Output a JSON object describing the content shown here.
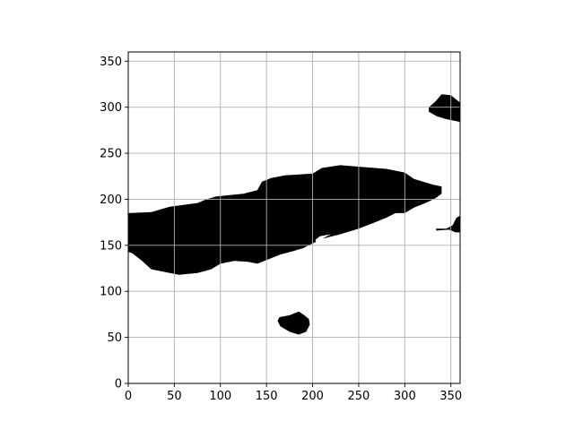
{
  "chart_data": {
    "type": "heatmap",
    "colormap": "binary",
    "xlim": [
      0,
      360
    ],
    "ylim": [
      0,
      360
    ],
    "xticks": [
      0,
      50,
      100,
      150,
      200,
      250,
      300,
      350
    ],
    "yticks": [
      0,
      50,
      100,
      150,
      200,
      250,
      300,
      350
    ],
    "xtick_labels": [
      "0",
      "50",
      "100",
      "150",
      "200",
      "250",
      "300",
      "350"
    ],
    "ytick_labels": [
      "0",
      "50",
      "100",
      "150",
      "200",
      "250",
      "300",
      "350"
    ],
    "grid": true,
    "colors": {
      "filled": "#000000",
      "empty": "#ffffff",
      "grid": "#b0b0b0"
    },
    "regions": [
      {
        "name": "main-region",
        "outline": [
          [
            0,
            185
          ],
          [
            25,
            186
          ],
          [
            45,
            192
          ],
          [
            75,
            196
          ],
          [
            85,
            200
          ],
          [
            95,
            203
          ],
          [
            115,
            205
          ],
          [
            125,
            206
          ],
          [
            140,
            210
          ],
          [
            145,
            219
          ],
          [
            155,
            223
          ],
          [
            170,
            226
          ],
          [
            200,
            228
          ],
          [
            210,
            234
          ],
          [
            230,
            237
          ],
          [
            255,
            235
          ],
          [
            280,
            233
          ],
          [
            300,
            229
          ],
          [
            310,
            222
          ],
          [
            330,
            216
          ],
          [
            340,
            214
          ],
          [
            340,
            206
          ],
          [
            333,
            201
          ],
          [
            325,
            197
          ],
          [
            310,
            191
          ],
          [
            300,
            185
          ],
          [
            290,
            185
          ],
          [
            280,
            180
          ],
          [
            265,
            174
          ],
          [
            250,
            168
          ],
          [
            230,
            162
          ],
          [
            210,
            157
          ],
          [
            200,
            152
          ],
          [
            190,
            147
          ],
          [
            180,
            144
          ],
          [
            165,
            140
          ],
          [
            150,
            134
          ],
          [
            140,
            130
          ],
          [
            130,
            132
          ],
          [
            115,
            133
          ],
          [
            100,
            130
          ],
          [
            90,
            124
          ],
          [
            75,
            120
          ],
          [
            55,
            118
          ],
          [
            45,
            120
          ],
          [
            35,
            122
          ],
          [
            25,
            124
          ],
          [
            15,
            133
          ],
          [
            5,
            141
          ],
          [
            0,
            143
          ]
        ]
      },
      {
        "name": "small-blob-lower",
        "outline": [
          [
            164,
            72
          ],
          [
            175,
            74
          ],
          [
            185,
            78
          ],
          [
            191,
            74
          ],
          [
            196,
            70
          ],
          [
            197,
            64
          ],
          [
            193,
            56
          ],
          [
            185,
            53
          ],
          [
            175,
            56
          ],
          [
            165,
            62
          ],
          [
            162,
            68
          ]
        ]
      },
      {
        "name": "blob-upper-right",
        "outline": [
          [
            326,
            300
          ],
          [
            333,
            306
          ],
          [
            340,
            314
          ],
          [
            350,
            313
          ],
          [
            360,
            305
          ],
          [
            360,
            284
          ],
          [
            345,
            287
          ],
          [
            335,
            290
          ],
          [
            326,
            295
          ]
        ]
      },
      {
        "name": "blob-right-edge",
        "outline": [
          [
            334,
            168
          ],
          [
            345,
            168
          ],
          [
            352,
            172
          ],
          [
            356,
            180
          ],
          [
            360,
            182
          ],
          [
            360,
            164
          ],
          [
            355,
            164
          ],
          [
            348,
            167
          ],
          [
            334,
            166
          ]
        ]
      },
      {
        "name": "notch-gap",
        "fill": "empty",
        "outline": [
          [
            205,
            150
          ],
          [
            212,
            158
          ],
          [
            220,
            162
          ],
          [
            208,
            160
          ],
          [
            203,
            156
          ]
        ]
      }
    ]
  }
}
